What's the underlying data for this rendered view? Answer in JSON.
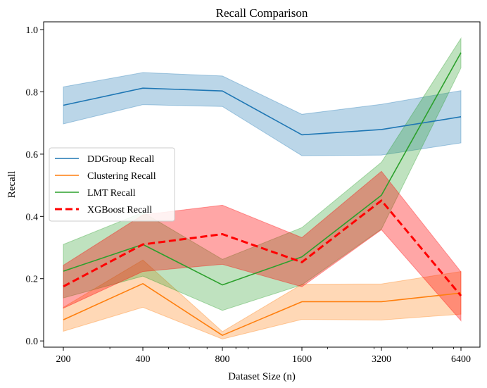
{
  "chart_data": {
    "type": "line",
    "title": "Recall Comparison",
    "xlabel": "Dataset Size (n)",
    "ylabel": "Recall",
    "x_scale": "log2",
    "x": [
      200,
      400,
      800,
      1600,
      3200,
      6400
    ],
    "x_tick_labels": [
      "200",
      "400",
      "800",
      "1600",
      "3200",
      "6400"
    ],
    "ylim": [
      -0.02,
      1.025
    ],
    "y_ticks": [
      0.0,
      0.2,
      0.4,
      0.6,
      0.8,
      1.0
    ],
    "y_tick_labels": [
      "0.0",
      "0.2",
      "0.4",
      "0.6",
      "0.8",
      "1.0"
    ],
    "grid": false,
    "legend_position": "center-left",
    "series": [
      {
        "name": "DDGroup Recall",
        "color": "#1f77b4",
        "line_style": "solid",
        "values": [
          0.757,
          0.812,
          0.803,
          0.662,
          0.679,
          0.72
        ],
        "lower": [
          0.697,
          0.759,
          0.753,
          0.595,
          0.597,
          0.636
        ],
        "upper": [
          0.816,
          0.862,
          0.851,
          0.728,
          0.76,
          0.804
        ]
      },
      {
        "name": "Clustering Recall",
        "color": "#ff7f0e",
        "line_style": "solid",
        "values": [
          0.068,
          0.184,
          0.018,
          0.126,
          0.126,
          0.154
        ],
        "lower": [
          0.031,
          0.108,
          0.006,
          0.069,
          0.067,
          0.086
        ],
        "upper": [
          0.108,
          0.26,
          0.03,
          0.182,
          0.183,
          0.223
        ]
      },
      {
        "name": "LMT Recall",
        "color": "#2ca02c",
        "line_style": "solid",
        "values": [
          0.224,
          0.31,
          0.18,
          0.27,
          0.468,
          0.926
        ],
        "lower": [
          0.138,
          0.208,
          0.098,
          0.18,
          0.359,
          0.877
        ],
        "upper": [
          0.31,
          0.413,
          0.262,
          0.364,
          0.574,
          0.972
        ]
      },
      {
        "name": "XGBoost Recall",
        "color": "#ff0000",
        "line_style": "dashed",
        "values": [
          0.175,
          0.31,
          0.343,
          0.253,
          0.451,
          0.145
        ],
        "lower": [
          0.105,
          0.223,
          0.246,
          0.174,
          0.357,
          0.065
        ],
        "upper": [
          0.243,
          0.405,
          0.436,
          0.332,
          0.545,
          0.222
        ]
      }
    ]
  }
}
